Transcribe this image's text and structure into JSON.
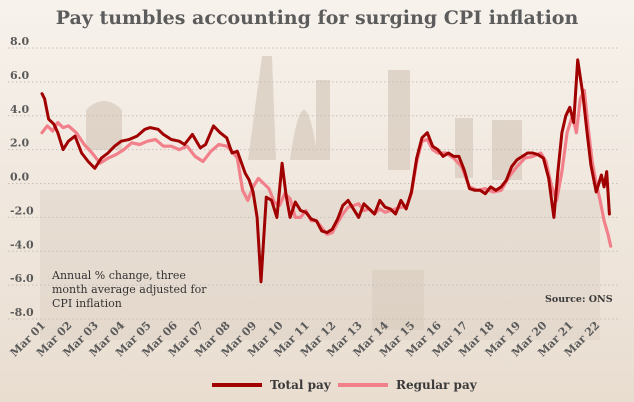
{
  "title": "Pay tumbles accounting for surging CPI inflation",
  "note_lines": [
    "Annual % change, three",
    "month average adjusted for",
    "CPI inflation"
  ],
  "source": "Source: ONS",
  "colors": {
    "total": "#a00000",
    "regular": "#f2808a",
    "sky_top": "#f7f2ec",
    "sky_bottom": "#e9ddd0",
    "gridline": "#c8bfb6"
  },
  "chart_data": {
    "type": "line",
    "title": "Pay tumbles accounting for surging CPI inflation",
    "xlabel": "",
    "ylabel": "",
    "ylim": [
      -8,
      8
    ],
    "yticks": [
      "8.0",
      "6.0",
      "4.0",
      "2.0",
      "0.0",
      "-2.0",
      "-4.0",
      "-6.0",
      "-8.0"
    ],
    "ytick_values": [
      8,
      6,
      4,
      2,
      0,
      -2,
      -4,
      -6,
      -8
    ],
    "xlim": [
      2001.0,
      2022.6
    ],
    "xticks": [
      "Mar 01",
      "Mar 02",
      "Mar 03",
      "Mar 04",
      "Mar 05",
      "Mar 06",
      "Mar 07",
      "Mar 08",
      "Mar 09",
      "Mar 10",
      "Mar 11",
      "Mar 12",
      "Mar 13",
      "Mar 14",
      "Mar 15",
      "Mar 16",
      "Mar 17",
      "Mar 18",
      "Mar 19",
      "Mar 20",
      "Mar 21",
      "Mar 22"
    ],
    "legend": {
      "position": "bottom"
    },
    "series": [
      {
        "name": "Total pay",
        "x": [
          2001.0,
          2001.1,
          2001.25,
          2001.45,
          2001.6,
          2001.8,
          2002.0,
          2002.25,
          2002.5,
          2002.75,
          2003.0,
          2003.25,
          2003.5,
          2003.75,
          2004.0,
          2004.3,
          2004.6,
          2004.9,
          2005.1,
          2005.4,
          2005.6,
          2005.9,
          2006.2,
          2006.4,
          2006.7,
          2007.0,
          2007.2,
          2007.5,
          2007.75,
          2008.0,
          2008.2,
          2008.4,
          2008.7,
          2008.85,
          2009.0,
          2009.15,
          2009.3,
          2009.5,
          2009.7,
          2009.9,
          2010.1,
          2010.25,
          2010.4,
          2010.6,
          2010.8,
          2011.0,
          2011.2,
          2011.4,
          2011.6,
          2011.8,
          2012.0,
          2012.2,
          2012.4,
          2012.6,
          2012.8,
          2013.0,
          2013.2,
          2013.4,
          2013.6,
          2013.8,
          2014.0,
          2014.2,
          2014.4,
          2014.6,
          2014.8,
          2015.0,
          2015.2,
          2015.4,
          2015.6,
          2015.8,
          2016.0,
          2016.2,
          2016.4,
          2016.6,
          2016.8,
          2017.0,
          2017.2,
          2017.4,
          2017.6,
          2017.8,
          2018.0,
          2018.2,
          2018.4,
          2018.6,
          2018.8,
          2019.0,
          2019.2,
          2019.4,
          2019.6,
          2019.8,
          2020.0,
          2020.2,
          2020.4,
          2020.55,
          2020.7,
          2020.85,
          2021.0,
          2021.15,
          2021.3,
          2021.5,
          2021.65,
          2021.8,
          2022.0,
          2022.1,
          2022.2,
          2022.3,
          2022.4,
          2022.5
        ],
        "values": [
          5.3,
          5.0,
          3.8,
          3.5,
          3.0,
          2.0,
          2.5,
          2.8,
          1.8,
          1.3,
          0.9,
          1.5,
          1.8,
          2.2,
          2.5,
          2.6,
          2.8,
          3.2,
          3.3,
          3.2,
          2.9,
          2.6,
          2.5,
          2.3,
          2.9,
          2.1,
          2.3,
          3.4,
          3.0,
          2.7,
          1.8,
          1.9,
          0.6,
          0.2,
          -0.5,
          -2.0,
          -5.8,
          -0.8,
          -1.0,
          -2.0,
          1.2,
          -0.7,
          -2.0,
          -1.1,
          -1.6,
          -1.7,
          -2.1,
          -2.2,
          -2.8,
          -2.9,
          -2.7,
          -2.1,
          -1.3,
          -1.0,
          -1.5,
          -2.0,
          -1.2,
          -1.5,
          -1.8,
          -1.0,
          -1.4,
          -1.5,
          -1.8,
          -1.0,
          -1.5,
          -0.5,
          1.5,
          2.7,
          3.0,
          2.2,
          2.0,
          1.6,
          1.8,
          1.6,
          1.6,
          0.8,
          -0.3,
          -0.4,
          -0.4,
          -0.6,
          -0.2,
          -0.4,
          -0.2,
          0.2,
          1.0,
          1.4,
          1.6,
          1.8,
          1.8,
          1.7,
          1.5,
          0.3,
          -2.0,
          0.7,
          3.0,
          4.0,
          4.5,
          3.6,
          7.3,
          5.2,
          3.1,
          1.1,
          -0.5,
          0.0,
          0.5,
          -0.2,
          0.7,
          -1.8
        ]
      },
      {
        "name": "Regular pay",
        "x": [
          2001.0,
          2001.2,
          2001.4,
          2001.6,
          2001.8,
          2002.0,
          2002.3,
          2002.6,
          2002.9,
          2003.2,
          2003.5,
          2003.8,
          2004.1,
          2004.4,
          2004.7,
          2005.0,
          2005.3,
          2005.6,
          2005.9,
          2006.2,
          2006.5,
          2006.8,
          2007.1,
          2007.4,
          2007.7,
          2008.0,
          2008.2,
          2008.4,
          2008.6,
          2008.8,
          2009.0,
          2009.2,
          2009.4,
          2009.6,
          2009.8,
          2010.0,
          2010.2,
          2010.4,
          2010.6,
          2010.8,
          2011.0,
          2011.2,
          2011.4,
          2011.6,
          2011.8,
          2012.0,
          2012.2,
          2012.4,
          2012.6,
          2012.8,
          2013.0,
          2013.2,
          2013.4,
          2013.6,
          2013.8,
          2014.0,
          2014.2,
          2014.4,
          2014.6,
          2014.8,
          2015.0,
          2015.2,
          2015.4,
          2015.6,
          2015.8,
          2016.0,
          2016.3,
          2016.6,
          2016.9,
          2017.2,
          2017.5,
          2017.8,
          2018.1,
          2018.4,
          2018.7,
          2019.0,
          2019.3,
          2019.6,
          2019.9,
          2020.1,
          2020.3,
          2020.5,
          2020.7,
          2020.9,
          2021.1,
          2021.25,
          2021.4,
          2021.55,
          2021.7,
          2021.85,
          2022.0,
          2022.15,
          2022.3,
          2022.45,
          2022.55
        ],
        "values": [
          3.0,
          3.4,
          3.1,
          3.6,
          3.3,
          3.4,
          3.0,
          2.3,
          1.8,
          1.2,
          1.5,
          1.7,
          2.0,
          2.4,
          2.3,
          2.5,
          2.6,
          2.2,
          2.2,
          2.0,
          2.2,
          1.6,
          1.3,
          1.9,
          2.3,
          2.2,
          1.9,
          1.5,
          -0.4,
          -1.0,
          -0.2,
          0.3,
          0.0,
          -0.3,
          -1.1,
          -1.3,
          -0.6,
          -0.9,
          -2.0,
          -2.0,
          -1.6,
          -2.2,
          -2.2,
          -2.6,
          -3.0,
          -2.9,
          -2.3,
          -1.8,
          -1.4,
          -1.3,
          -1.2,
          -1.6,
          -1.5,
          -1.8,
          -1.5,
          -1.7,
          -1.6,
          -1.5,
          -1.4,
          -1.4,
          -0.6,
          1.3,
          2.5,
          2.6,
          2.0,
          1.8,
          1.8,
          1.5,
          1.0,
          -0.2,
          -0.4,
          -0.3,
          -0.5,
          -0.4,
          0.4,
          1.0,
          1.5,
          1.6,
          1.8,
          1.3,
          -0.1,
          -1.0,
          0.7,
          3.0,
          4.0,
          3.0,
          5.0,
          5.5,
          3.2,
          1.3,
          0.0,
          -1.0,
          -2.2,
          -3.0,
          -3.7
        ]
      }
    ]
  }
}
